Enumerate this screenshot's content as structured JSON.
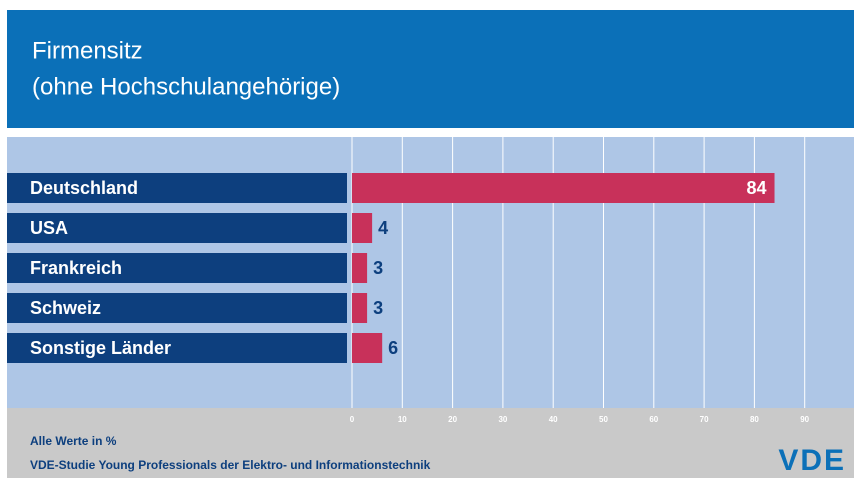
{
  "chart_data": {
    "type": "barh",
    "title": "Firmensitz",
    "subtitle": "(ohne Hochschulangehörige)",
    "categories": [
      "Deutschland",
      "USA",
      "Frankreich",
      "Schweiz",
      "Sonstige Länder"
    ],
    "values": [
      84,
      4,
      3,
      3,
      6
    ],
    "color": "#c8315a",
    "label_color": "#0d3f7e",
    "xlim": [
      0,
      100
    ],
    "xticks": [
      0,
      10,
      20,
      30,
      40,
      50,
      60,
      70,
      80,
      90
    ],
    "grid": true,
    "note": "Alle Werte in %",
    "source": "VDE-Studie Young Professionals der Elektro- und Informationstechnik",
    "logo": "VDE"
  }
}
